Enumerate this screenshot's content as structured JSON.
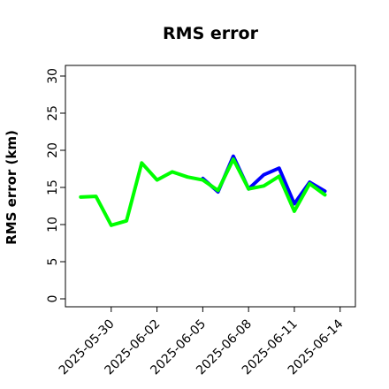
{
  "chart_data": {
    "type": "line",
    "title": "RMS error",
    "xlabel": "",
    "ylabel": "RMS error (km)",
    "ylim": [
      0,
      30
    ],
    "xlim": [
      "2025-05-27",
      "2025-06-15"
    ],
    "y_ticks": [
      "0",
      "5",
      "10",
      "15",
      "20",
      "25",
      "30"
    ],
    "x_ticks": [
      {
        "label": "2025-05-30",
        "color": "#000000"
      },
      {
        "label": "2025-06-02",
        "color": "#000000"
      },
      {
        "label": "2025-06-05",
        "color": "#228B22"
      },
      {
        "label": "2025-06-08",
        "color": "#000000"
      },
      {
        "label": "2025-06-11",
        "color": "#000000"
      },
      {
        "label": "2025-06-14",
        "color": "#000000"
      }
    ],
    "grid": false,
    "series": [
      {
        "color": "#0000ff",
        "x": [
          "2025-06-05",
          "2025-06-06",
          "2025-06-07",
          "2025-06-08",
          "2025-06-09",
          "2025-06-10",
          "2025-06-11",
          "2025-06-12",
          "2025-06-13"
        ],
        "values": [
          16.2,
          14.4,
          19.2,
          14.8,
          16.7,
          17.6,
          12.8,
          15.7,
          14.5
        ]
      },
      {
        "color": "#00ff00",
        "x": [
          "2025-05-28",
          "2025-05-29",
          "2025-05-30",
          "2025-05-31",
          "2025-06-01",
          "2025-06-02",
          "2025-06-03",
          "2025-06-04",
          "2025-06-05",
          "2025-06-06",
          "2025-06-07",
          "2025-06-08",
          "2025-06-09",
          "2025-06-10",
          "2025-06-11",
          "2025-06-12",
          "2025-06-13"
        ],
        "values": [
          13.7,
          13.8,
          9.9,
          10.5,
          18.3,
          16.0,
          17.1,
          16.4,
          16.0,
          14.6,
          18.8,
          14.8,
          15.2,
          16.5,
          11.8,
          15.5,
          14.0
        ]
      }
    ]
  }
}
